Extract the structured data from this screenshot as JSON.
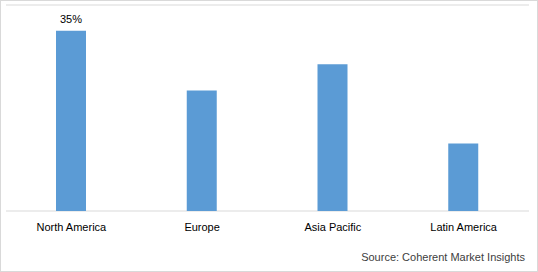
{
  "chart_data": {
    "type": "bar",
    "categories": [
      "North America",
      "Europe",
      "Asia Pacific",
      "Latin America"
    ],
    "values": [
      35,
      23.4,
      28.5,
      13.1
    ],
    "value_labels": [
      "35%",
      null,
      null,
      null
    ],
    "data_labels": true,
    "color": "#5b9bd5",
    "ylim": [
      0,
      40
    ],
    "yticks": [
      0,
      5,
      10,
      15,
      20,
      25,
      30,
      35,
      40
    ],
    "grid": true,
    "tick_labels": "x",
    "annotation": "Source: Coherent Market Insights"
  }
}
